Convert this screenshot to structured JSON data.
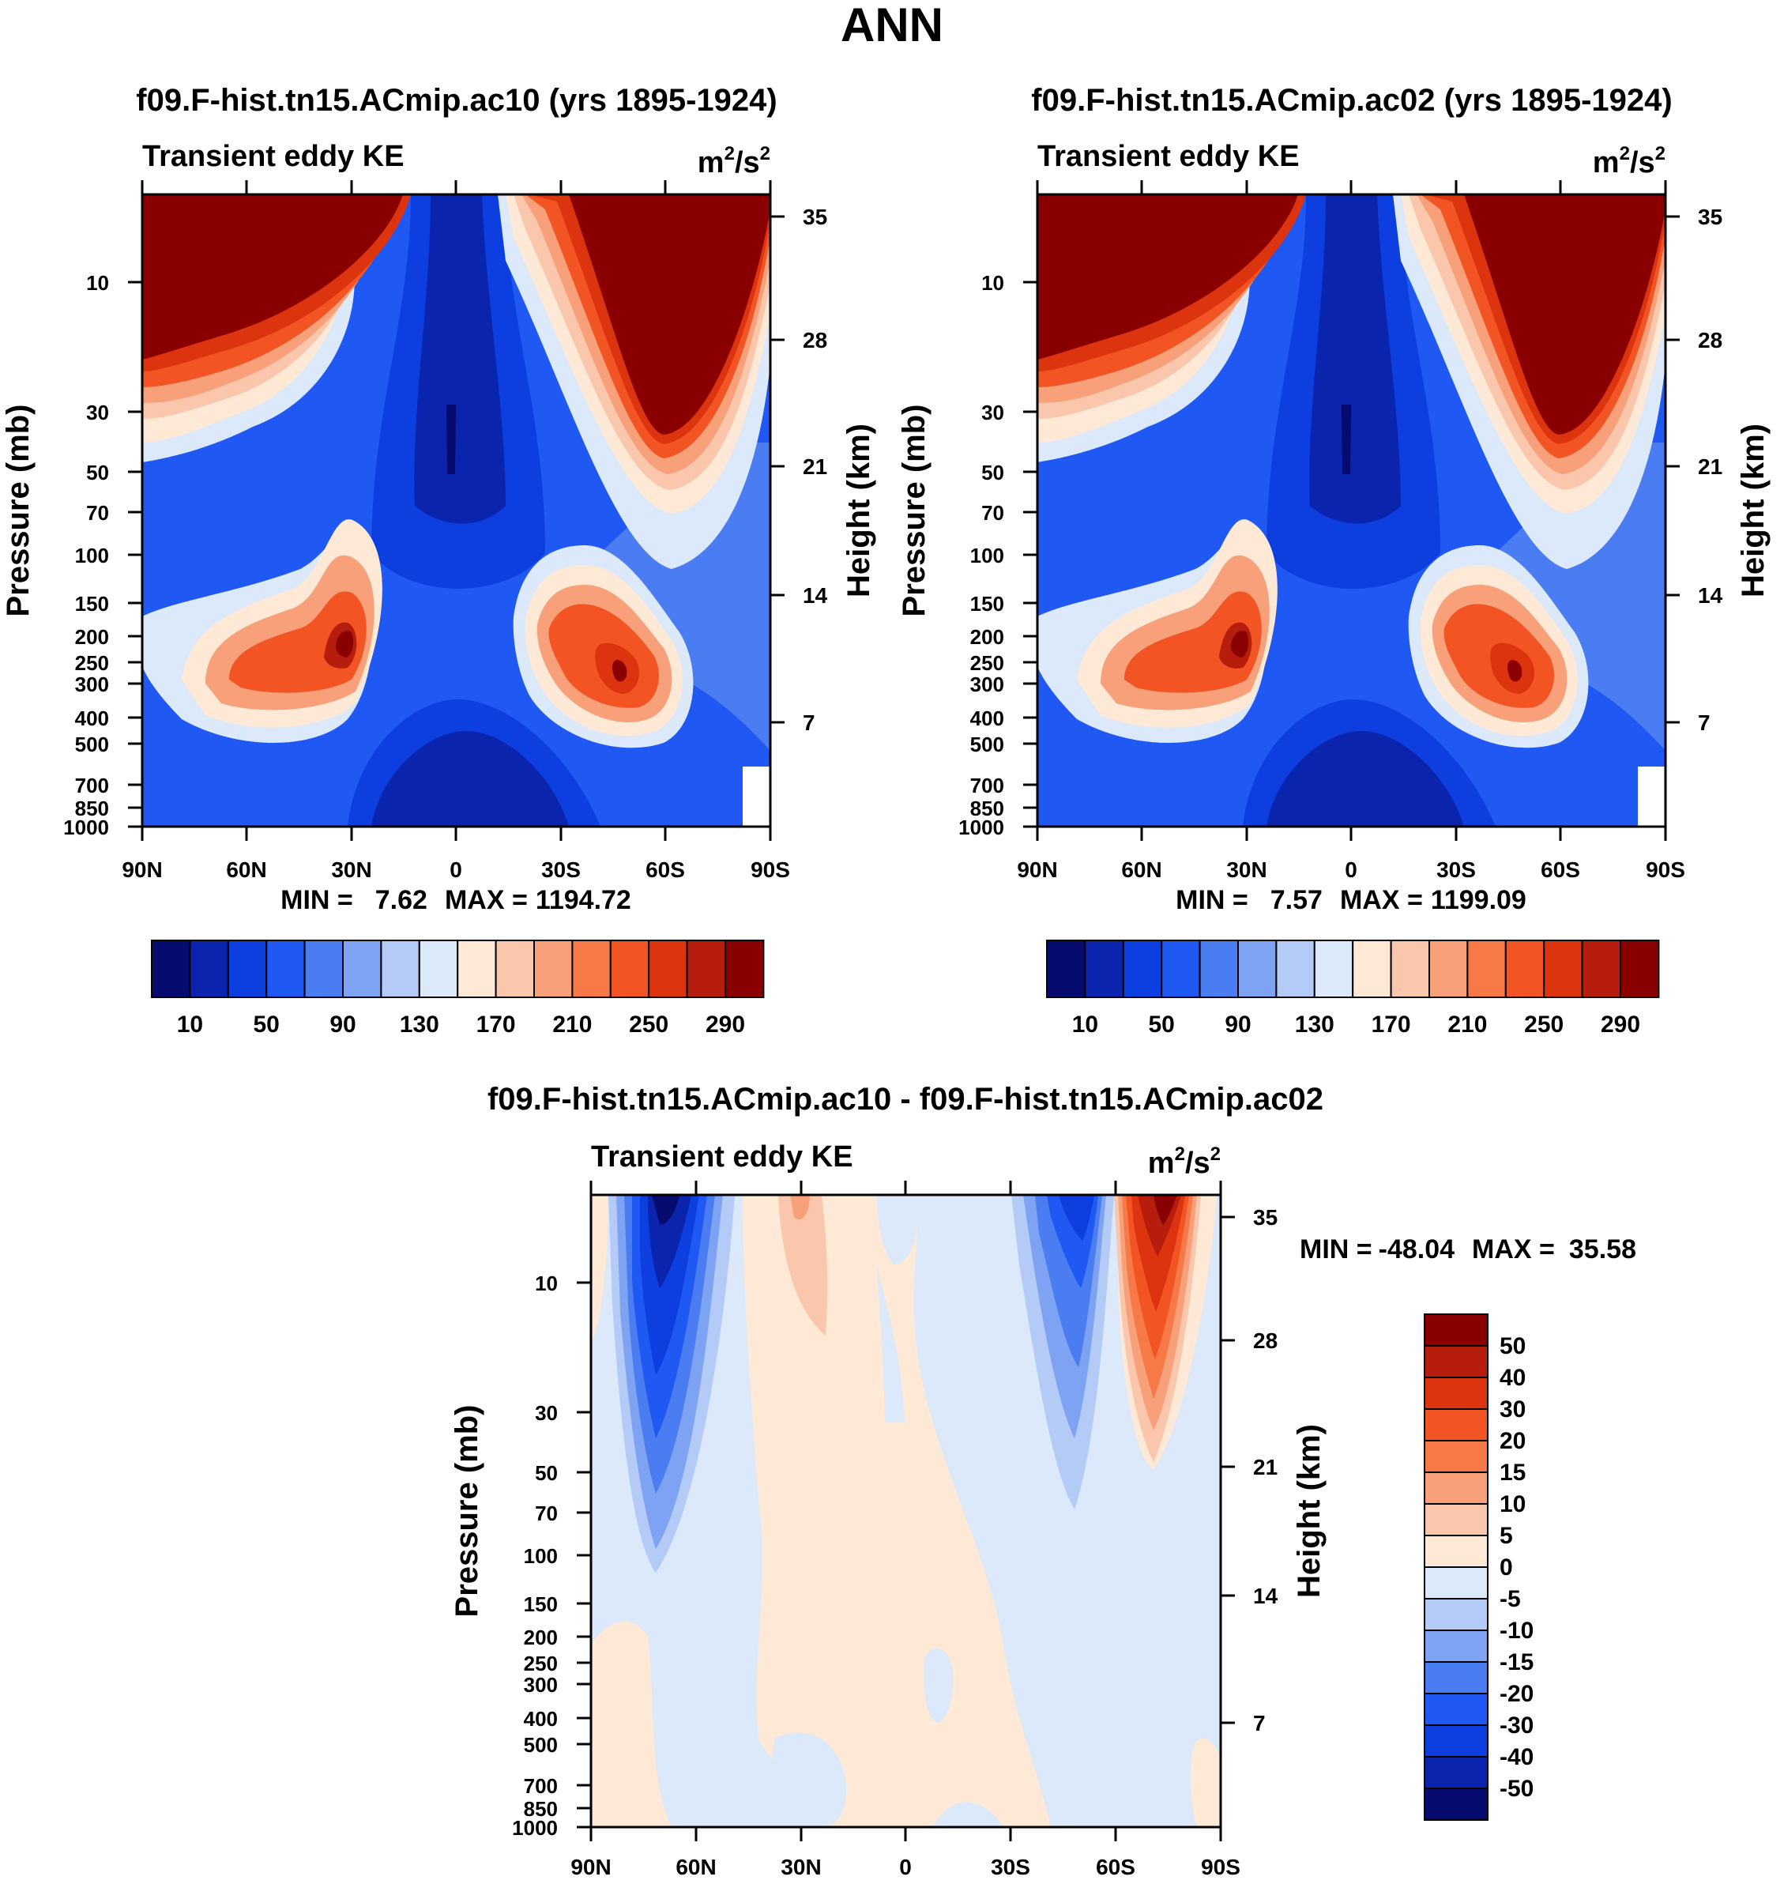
{
  "figure_title": "ANN",
  "chart_data": [
    {
      "type": "heatmap",
      "title": "f09.F-hist.tn15.ACmip.ac10 (yrs 1895-1924)",
      "subtitle": "Transient eddy KE",
      "units_base": "m",
      "units_exp1": "2",
      "units_mid": "/s",
      "units_exp2": "2",
      "xlabel": "",
      "ylabel": "Pressure (mb)",
      "ylabel_right": "Height (km)",
      "x_ticks": [
        "90N",
        "60N",
        "30N",
        "0",
        "30S",
        "60S",
        "90S"
      ],
      "y_ticks": [
        "10",
        "30",
        "50",
        "70",
        "100",
        "150",
        "200",
        "250",
        "300",
        "400",
        "500",
        "700",
        "850",
        "1000"
      ],
      "y_ticks_right": [
        "35",
        "28",
        "21",
        "14",
        "7"
      ],
      "stats": {
        "min_label": "MIN =",
        "min": "7.62",
        "max_label": "MAX =",
        "max": "1194.72"
      },
      "colorbar_labels": [
        "10",
        "50",
        "90",
        "130",
        "170",
        "210",
        "250",
        "290"
      ],
      "contour_levels": [
        10,
        30,
        50,
        70,
        90,
        110,
        130,
        150,
        170,
        190,
        210,
        230,
        250,
        270,
        290
      ],
      "max_value": 1194.72,
      "min_value": 7.62
    },
    {
      "type": "heatmap",
      "title": "f09.F-hist.tn15.ACmip.ac02 (yrs 1895-1924)",
      "subtitle": "Transient eddy KE",
      "units_base": "m",
      "units_exp1": "2",
      "units_mid": "/s",
      "units_exp2": "2",
      "xlabel": "",
      "ylabel": "Pressure (mb)",
      "ylabel_right": "Height (km)",
      "x_ticks": [
        "90N",
        "60N",
        "30N",
        "0",
        "30S",
        "60S",
        "90S"
      ],
      "y_ticks": [
        "10",
        "30",
        "50",
        "70",
        "100",
        "150",
        "200",
        "250",
        "300",
        "400",
        "500",
        "700",
        "850",
        "1000"
      ],
      "y_ticks_right": [
        "35",
        "28",
        "21",
        "14",
        "7"
      ],
      "stats": {
        "min_label": "MIN =",
        "min": "7.57",
        "max_label": "MAX =",
        "max": "1199.09"
      },
      "colorbar_labels": [
        "10",
        "50",
        "90",
        "130",
        "170",
        "210",
        "250",
        "290"
      ],
      "contour_levels": [
        10,
        30,
        50,
        70,
        90,
        110,
        130,
        150,
        170,
        190,
        210,
        230,
        250,
        270,
        290
      ],
      "max_value": 1199.09,
      "min_value": 7.57
    },
    {
      "type": "heatmap",
      "title": "f09.F-hist.tn15.ACmip.ac10 - f09.F-hist.tn15.ACmip.ac02",
      "subtitle": "Transient eddy KE",
      "units_base": "m",
      "units_exp1": "2",
      "units_mid": "/s",
      "units_exp2": "2",
      "xlabel": "",
      "ylabel": "Pressure (mb)",
      "ylabel_right": "Height (km)",
      "x_ticks": [
        "90N",
        "60N",
        "30N",
        "0",
        "30S",
        "60S",
        "90S"
      ],
      "y_ticks": [
        "10",
        "30",
        "50",
        "70",
        "100",
        "150",
        "200",
        "250",
        "300",
        "400",
        "500",
        "700",
        "850",
        "1000"
      ],
      "y_ticks_right": [
        "35",
        "28",
        "21",
        "14",
        "7"
      ],
      "stats": {
        "min_label": "MIN =",
        "min": "-48.04",
        "max_label": "MAX =",
        "max": "35.58"
      },
      "colorbar_labels": [
        "50",
        "40",
        "30",
        "20",
        "15",
        "10",
        "5",
        "0",
        "-5",
        "-10",
        "-15",
        "-20",
        "-30",
        "-40",
        "-50"
      ],
      "contour_levels": [
        -50,
        -40,
        -30,
        -20,
        -15,
        -10,
        -5,
        0,
        5,
        10,
        15,
        20,
        30,
        40,
        50
      ],
      "max_value": 35.58,
      "min_value": -48.04
    }
  ],
  "palette": [
    "#070a6e",
    "#0b24ad",
    "#0c3ee0",
    "#1f58f3",
    "#4a7cf2",
    "#7ea3f2",
    "#b3cbf6",
    "#dbe9fb",
    "#fde9d6",
    "#fac6ac",
    "#f8a07a",
    "#f67947",
    "#f25523",
    "#dd3410",
    "#b61d0d",
    "#8a0000"
  ]
}
